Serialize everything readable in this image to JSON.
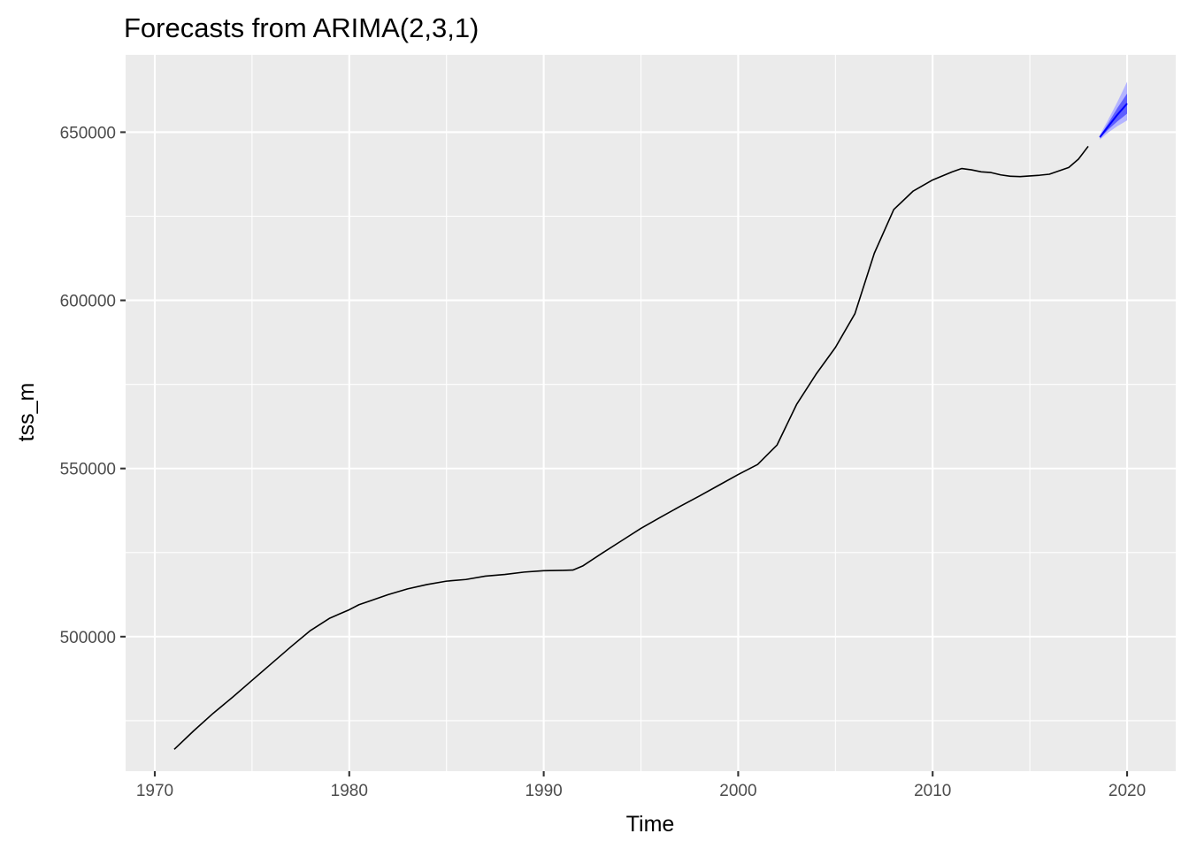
{
  "chart_data": {
    "type": "line",
    "title": "Forecasts from ARIMA(2,3,1)",
    "xlabel": "Time",
    "ylabel": "tss_m",
    "xlim": [
      1968.5,
      2022.5
    ],
    "ylim": [
      460000,
      673000
    ],
    "x_ticks": [
      1970,
      1980,
      1990,
      2000,
      2010,
      2020
    ],
    "x_tick_labels": [
      "1970",
      "1980",
      "1990",
      "2000",
      "2010",
      "2020"
    ],
    "y_ticks": [
      500000,
      550000,
      600000,
      650000
    ],
    "y_tick_labels": [
      "500000",
      "550000",
      "600000",
      "650000"
    ],
    "grid": true,
    "legend": "none",
    "colors": {
      "panel_background": "#ebebeb",
      "grid": "#ffffff",
      "observed_line": "#000000",
      "forecast_line": "#0000ff",
      "interval_80": "#5e5eff",
      "interval_95": "#b4b4ff"
    },
    "series": [
      {
        "kind": "observed",
        "x": [
          1971.0,
          1972.0,
          1973.0,
          1974.0,
          1975.0,
          1976.0,
          1977.0,
          1978.0,
          1979.0,
          1980.0,
          1980.5,
          1981.0,
          1982.0,
          1983.0,
          1984.0,
          1985.0,
          1986.0,
          1987.0,
          1988.0,
          1989.0,
          1990.0,
          1991.0,
          1991.5,
          1992.0,
          1993.0,
          1994.0,
          1995.0,
          1996.0,
          1997.0,
          1998.0,
          1999.0,
          2000.0,
          2001.0,
          2002.0,
          2003.0,
          2004.0,
          2005.0,
          2006.0,
          2007.0,
          2008.0,
          2009.0,
          2010.0,
          2011.0,
          2011.5,
          2012.0,
          2012.5,
          2013.0,
          2013.5,
          2014.0,
          2014.5,
          2015.0,
          2015.5,
          2016.0,
          2017.0,
          2017.5,
          2018.0
        ],
        "y": [
          466500,
          472000,
          477200,
          482000,
          487000,
          492000,
          497000,
          501800,
          505500,
          508000,
          509500,
          510500,
          512500,
          514200,
          515500,
          516500,
          517000,
          518000,
          518500,
          519200,
          519600,
          519700,
          519800,
          521000,
          524800,
          528500,
          532200,
          535500,
          538700,
          541800,
          545000,
          548200,
          551200,
          557000,
          569000,
          578000,
          586000,
          596000,
          614000,
          627000,
          632500,
          635800,
          638200,
          639200,
          638800,
          638200,
          638000,
          637300,
          636900,
          636800,
          637000,
          637200,
          637500,
          639500,
          642000,
          645800
        ]
      },
      {
        "kind": "forecast",
        "x": [
          2018.6,
          2019.0,
          2019.5,
          2020.0
        ],
        "y": [
          648500,
          651500,
          655200,
          658500
        ],
        "lo80": [
          648200,
          650600,
          653200,
          655500
        ],
        "hi80": [
          648800,
          652400,
          657200,
          661500
        ],
        "lo95": [
          647800,
          649800,
          651800,
          653500
        ],
        "hi95": [
          649200,
          653400,
          659000,
          665000
        ]
      }
    ]
  }
}
